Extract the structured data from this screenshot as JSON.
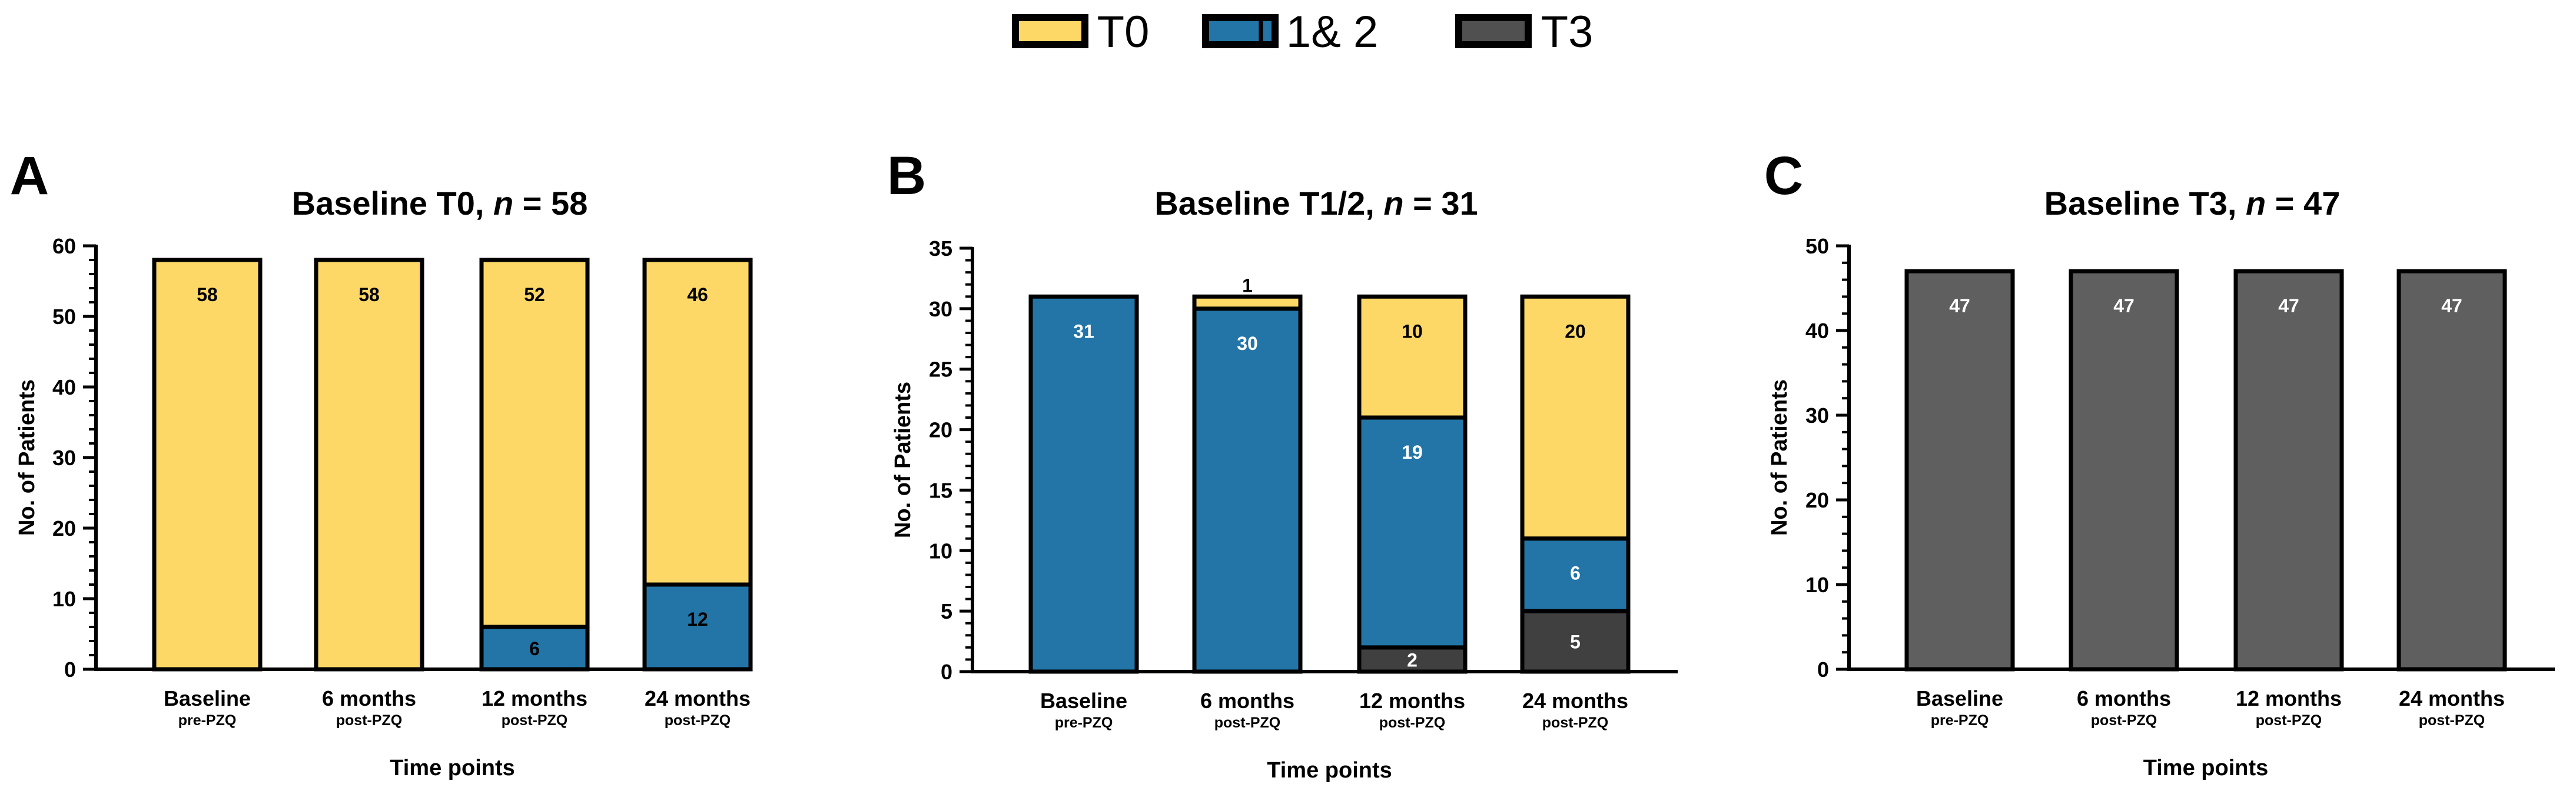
{
  "colors": {
    "T0": "#FDD866",
    "T12": "#2275A6",
    "T3": "#5F5F5F",
    "T3_dark": "#404040",
    "stroke": "#000000"
  },
  "legend": [
    {
      "key": "T0",
      "label": "T0",
      "color": "#FDD866"
    },
    {
      "key": "T12",
      "label": "T 1& 2",
      "color": "#2275A6"
    },
    {
      "key": "T3",
      "label": "T3",
      "color": "#505050"
    }
  ],
  "chart_data": [
    {
      "panel": "A",
      "type": "bar",
      "stacked": true,
      "title_prefix": "Baseline T0, ",
      "title_n": "n",
      "title_suffix": " = 58",
      "xlabel": "Time points",
      "ylabel": "No. of Patients",
      "ylim": [
        0,
        60
      ],
      "yticks": [
        0,
        10,
        20,
        30,
        40,
        50,
        60
      ],
      "categories": [
        {
          "main": "Baseline",
          "sub": "pre-PZQ"
        },
        {
          "main": "6 months",
          "sub": "post-PZQ"
        },
        {
          "main": "12 months",
          "sub": "post-PZQ"
        },
        {
          "main": "24 months",
          "sub": "post-PZQ"
        }
      ],
      "series": [
        {
          "name": "T3",
          "color": "#404040",
          "values": [
            0,
            0,
            0,
            0
          ]
        },
        {
          "name": "T 1& 2",
          "color": "#2275A6",
          "values": [
            0,
            0,
            6,
            12
          ]
        },
        {
          "name": "T0",
          "color": "#FDD866",
          "values": [
            58,
            58,
            52,
            46
          ]
        }
      ]
    },
    {
      "panel": "B",
      "type": "bar",
      "stacked": true,
      "title_prefix": "Baseline T1/2, ",
      "title_n": "n",
      "title_suffix": " = 31",
      "xlabel": "Time points",
      "ylabel": "No. of Patients",
      "ylim": [
        0,
        35
      ],
      "yticks": [
        0,
        5,
        10,
        15,
        20,
        25,
        30,
        35
      ],
      "categories": [
        {
          "main": "Baseline",
          "sub": "pre-PZQ"
        },
        {
          "main": "6 months",
          "sub": "post-PZQ"
        },
        {
          "main": "12 months",
          "sub": "post-PZQ"
        },
        {
          "main": "24 months",
          "sub": "post-PZQ"
        }
      ],
      "series": [
        {
          "name": "T3",
          "color": "#404040",
          "values": [
            0,
            0,
            2,
            5
          ]
        },
        {
          "name": "T 1& 2",
          "color": "#2275A6",
          "values": [
            31,
            30,
            19,
            6
          ]
        },
        {
          "name": "T0",
          "color": "#FDD866",
          "values": [
            0,
            1,
            10,
            20
          ]
        }
      ]
    },
    {
      "panel": "C",
      "type": "bar",
      "stacked": true,
      "title_prefix": "Baseline T3, ",
      "title_n": "n",
      "title_suffix": " = 47",
      "xlabel": "Time points",
      "ylabel": "No. of Patients",
      "ylim": [
        0,
        50
      ],
      "yticks": [
        0,
        10,
        20,
        30,
        40,
        50
      ],
      "categories": [
        {
          "main": "Baseline",
          "sub": "pre-PZQ"
        },
        {
          "main": "6 months",
          "sub": "post-PZQ"
        },
        {
          "main": "12 months",
          "sub": "post-PZQ"
        },
        {
          "main": "24 months",
          "sub": "post-PZQ"
        }
      ],
      "series": [
        {
          "name": "T3",
          "color": "#5F5F5F",
          "values": [
            47,
            47,
            47,
            47
          ]
        },
        {
          "name": "T 1& 2",
          "color": "#2275A6",
          "values": [
            0,
            0,
            0,
            0
          ]
        },
        {
          "name": "T0",
          "color": "#FDD866",
          "values": [
            0,
            0,
            0,
            0
          ]
        }
      ]
    }
  ]
}
